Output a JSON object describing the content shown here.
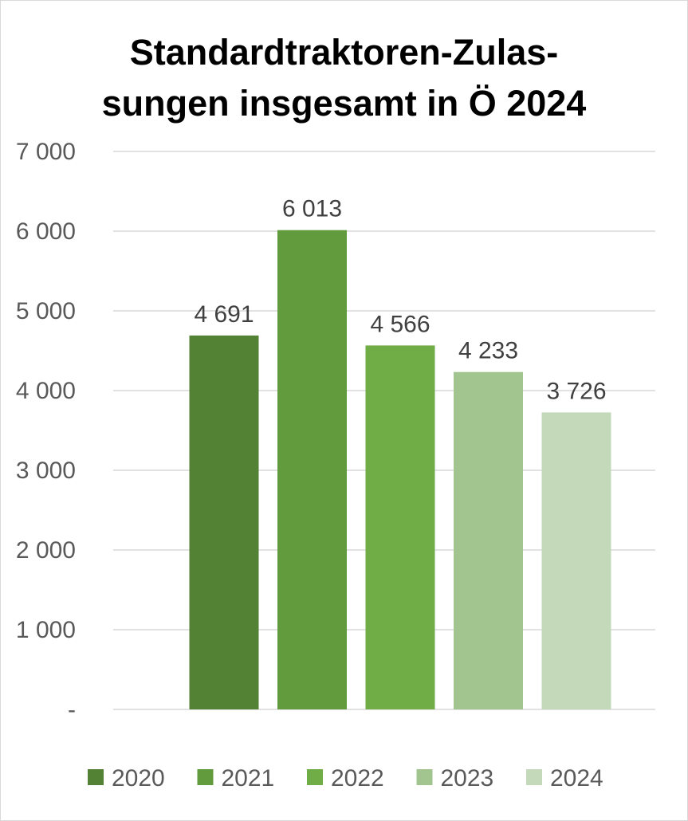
{
  "chart_data": {
    "type": "bar",
    "title_lines": [
      "Standardtraktoren-Zulas-",
      "sungen insgesamt in Ö 2024"
    ],
    "categories": [
      "2020",
      "2021",
      "2022",
      "2023",
      "2024"
    ],
    "values": [
      4691,
      6013,
      4566,
      4233,
      3726
    ],
    "value_labels": [
      "4 691",
      "6 013",
      "4 566",
      "4 233",
      "3 726"
    ],
    "colors": [
      "#548235",
      "#629b3e",
      "#70ad47",
      "#a2c58f",
      "#c3d9ba"
    ],
    "ylim": [
      0,
      7000
    ],
    "y_ticks": [
      0,
      1000,
      2000,
      3000,
      4000,
      5000,
      6000,
      7000
    ],
    "y_tick_labels": [
      "-",
      "1 000",
      "2 000",
      "3 000",
      "4 000",
      "5 000",
      "6 000",
      "7 000"
    ],
    "grid": true,
    "legend_position": "bottom",
    "xlabel": "",
    "ylabel": ""
  }
}
